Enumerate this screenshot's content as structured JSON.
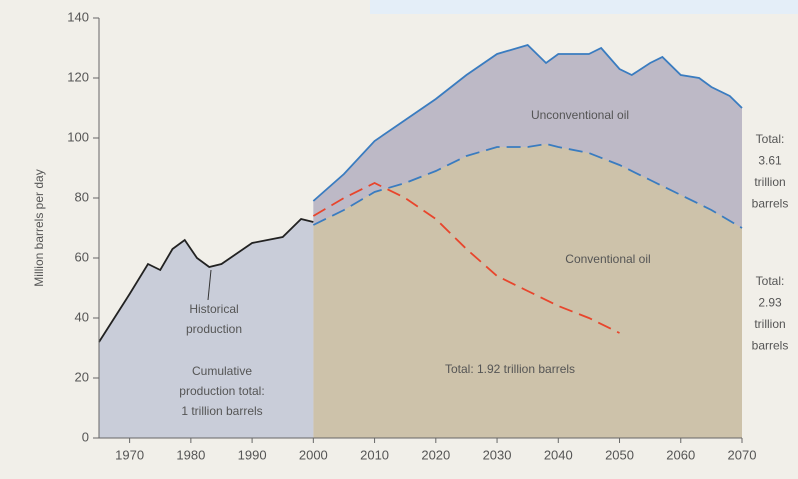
{
  "chart_data": {
    "type": "area",
    "ylabel": "Million barrels per day",
    "xlim": [
      1965,
      2070
    ],
    "xticks": [
      1970,
      1980,
      1990,
      2000,
      2010,
      2020,
      2030,
      2040,
      2050,
      2060,
      2070
    ],
    "ylim": [
      0,
      140
    ],
    "yticks": [
      0,
      20,
      40,
      60,
      80,
      100,
      120,
      140
    ],
    "series": [
      {
        "color": "#3a7cc0",
        "fill": "#bdb9c6",
        "style": "solid",
        "x": [
          2000,
          2005,
          2010,
          2015,
          2020,
          2025,
          2030,
          2035,
          2038,
          2040,
          2045,
          2047,
          2050,
          2052,
          2055,
          2057,
          2060,
          2063,
          2065,
          2068,
          2070
        ],
        "values": [
          79,
          88,
          99,
          106,
          113,
          121,
          128,
          131,
          125,
          128,
          128,
          130,
          123,
          121,
          125,
          127,
          121,
          120,
          117,
          114,
          110
        ]
      },
      {
        "color": "#3a7cc0",
        "fill": "#cdc2aa",
        "style": "dashed",
        "x": [
          2000,
          2005,
          2010,
          2015,
          2020,
          2025,
          2030,
          2035,
          2038,
          2040,
          2045,
          2050,
          2055,
          2060,
          2065,
          2070
        ],
        "values": [
          71,
          76,
          82,
          85,
          89,
          94,
          97,
          97,
          98,
          97,
          95,
          91,
          86,
          81,
          76,
          70
        ]
      },
      {
        "color": "#222222",
        "fill": "#c9cdd9",
        "style": "solid",
        "x": [
          1965,
          1970,
          1973,
          1975,
          1977,
          1979,
          1981,
          1983,
          1985,
          1990,
          1995,
          1998,
          2000
        ],
        "values": [
          32,
          48,
          58,
          56,
          63,
          66,
          60,
          57,
          58,
          65,
          67,
          73,
          72
        ]
      },
      {
        "color": "#e8452c",
        "style": "dashed",
        "x": [
          2000,
          2005,
          2010,
          2015,
          2020,
          2025,
          2030,
          2035,
          2040,
          2045,
          2050
        ],
        "values": [
          74,
          80,
          85,
          80,
          73,
          63,
          54,
          49,
          44,
          40,
          35
        ]
      }
    ],
    "annotations": [
      {
        "lines": [
          "Unconventional oil"
        ]
      },
      {
        "lines": [
          "Conventional oil"
        ]
      },
      {
        "lines": [
          "Historical",
          "production"
        ]
      },
      {
        "lines": [
          "Cumulative",
          "production total:",
          "1 trillion barrels"
        ]
      },
      {
        "lines": [
          "Total: 1.92 trillion barrels"
        ]
      },
      {
        "lines": [
          "Total:",
          "3.61",
          "trillion",
          "barrels"
        ]
      },
      {
        "lines": [
          "Total:",
          "2.93",
          "trillion",
          "barrels"
        ]
      }
    ]
  }
}
